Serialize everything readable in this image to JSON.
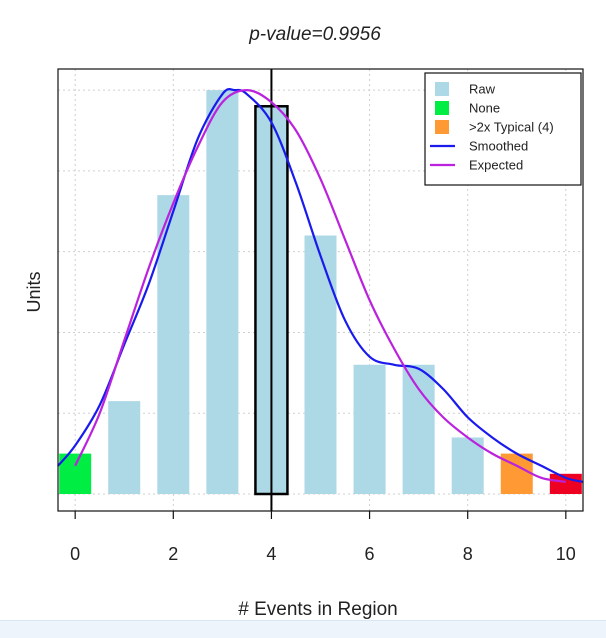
{
  "chart_data": {
    "type": "bar",
    "title": "p-value=0.9956",
    "xlabel": "# Events in Region",
    "ylabel": "Units",
    "x_tick_labels": [
      "0",
      "2",
      "4",
      "6",
      "8",
      "10"
    ],
    "x_ticks": [
      0,
      2,
      4,
      6,
      8,
      10
    ],
    "xlim": [
      -0.35,
      10.35
    ],
    "ylim": [
      0,
      1.03
    ],
    "grid": true,
    "legend_position": "top-right",
    "bars": [
      {
        "x": 0,
        "value": 0.1,
        "category": "None"
      },
      {
        "x": 1,
        "value": 0.23,
        "category": "Raw"
      },
      {
        "x": 2,
        "value": 0.74,
        "category": "Raw"
      },
      {
        "x": 3,
        "value": 1.0,
        "category": "Raw"
      },
      {
        "x": 4,
        "value": 0.96,
        "category": "Raw",
        "highlighted": true
      },
      {
        "x": 5,
        "value": 0.64,
        "category": "Raw"
      },
      {
        "x": 6,
        "value": 0.32,
        "category": "Raw"
      },
      {
        "x": 7,
        "value": 0.32,
        "category": "Raw"
      },
      {
        "x": 8,
        "value": 0.14,
        "category": "Raw"
      },
      {
        "x": 9,
        "value": 0.1,
        "category": ">2x Typical (4)"
      },
      {
        "x": 10,
        "value": 0.05,
        "category": "None"
      }
    ],
    "bar_colors": {
      "Raw": "#add8e6",
      "None": "#00ee44",
      ">2x Typical (4)": "#ff9933",
      "x10": "#ee0022"
    },
    "vertical_line_x": 4,
    "series": [
      {
        "name": "Smoothed",
        "color": "#1a1aee",
        "x": [
          -0.35,
          0.0,
          0.5,
          1.0,
          1.5,
          2.0,
          2.5,
          3.0,
          3.25,
          3.5,
          4.0,
          4.5,
          5.0,
          5.5,
          6.0,
          6.5,
          7.0,
          7.5,
          8.0,
          8.5,
          9.0,
          9.5,
          10.0,
          10.35
        ],
        "values": [
          0.07,
          0.12,
          0.22,
          0.37,
          0.52,
          0.7,
          0.88,
          0.99,
          1.0,
          0.99,
          0.92,
          0.77,
          0.59,
          0.43,
          0.34,
          0.32,
          0.31,
          0.26,
          0.19,
          0.14,
          0.1,
          0.07,
          0.04,
          0.03
        ]
      },
      {
        "name": "Expected",
        "color": "#bb22dd",
        "x": [
          0.0,
          0.5,
          1.0,
          1.5,
          2.0,
          2.5,
          3.0,
          3.5,
          4.0,
          4.5,
          5.0,
          5.5,
          6.0,
          6.5,
          7.0,
          7.5,
          8.0,
          8.5,
          9.0,
          9.5,
          10.0
        ],
        "values": [
          0.07,
          0.2,
          0.38,
          0.56,
          0.72,
          0.86,
          0.97,
          1.0,
          0.97,
          0.9,
          0.78,
          0.63,
          0.48,
          0.36,
          0.26,
          0.19,
          0.14,
          0.1,
          0.07,
          0.04,
          0.03
        ]
      }
    ],
    "legend": [
      {
        "label": "Raw",
        "kind": "box",
        "color": "#add8e6"
      },
      {
        "label": "None",
        "kind": "box",
        "color": "#00ee44"
      },
      {
        "label": ">2x Typical (4)",
        "kind": "box",
        "color": "#ff9933"
      },
      {
        "label": "Smoothed",
        "kind": "line",
        "color": "#1a1aee"
      },
      {
        "label": "Expected",
        "kind": "line",
        "color": "#bb22dd"
      }
    ]
  }
}
